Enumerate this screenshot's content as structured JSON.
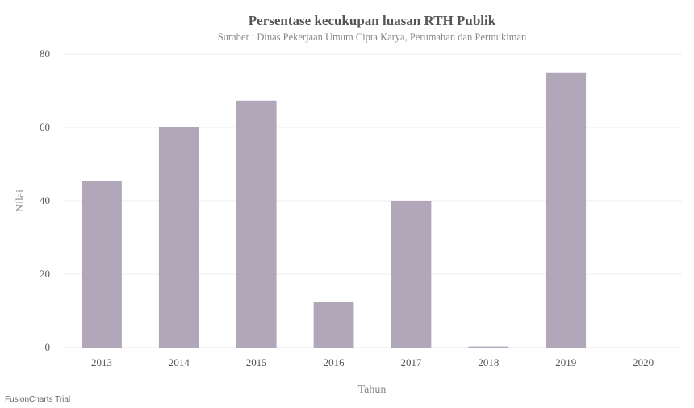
{
  "chart_data": {
    "type": "bar",
    "title": "Persentase kecukupan luasan RTH Publik",
    "subtitle": "Sumber : Dinas Pekerjaan Umum Cipta Karya, Perumahan dan Permukiman",
    "xlabel": "Tahun",
    "ylabel": "Nilai",
    "categories": [
      "2013",
      "2014",
      "2015",
      "2016",
      "2017",
      "2018",
      "2019",
      "2020"
    ],
    "values": [
      45.5,
      60,
      67.3,
      12.5,
      40,
      0.3,
      75,
      0
    ],
    "ylim": [
      0,
      80
    ],
    "yticks": [
      0,
      20,
      40,
      60,
      80
    ],
    "grid": true,
    "bar_color": "#b0a7b8"
  },
  "watermark": "FusionCharts Trial"
}
